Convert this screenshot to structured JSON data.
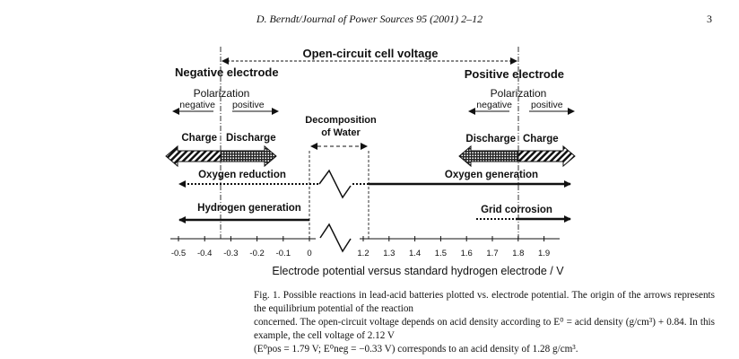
{
  "header": {
    "running_title": "D. Berndt/Journal of Power Sources 95 (2001) 2–12",
    "page_number": "3"
  },
  "figure": {
    "ocv_label": "Open-circuit cell voltage",
    "negative_electrode": {
      "title": "Negative electrode",
      "polarization": "Polarization",
      "neg": "negative",
      "pos": "positive",
      "left_label": "Charge",
      "right_label": "Discharge"
    },
    "positive_electrode": {
      "title": "Positive electrode",
      "polarization": "Polarization",
      "neg": "negative",
      "pos": "positive",
      "left_label": "Discharge",
      "right_label": "Charge"
    },
    "water": {
      "line1": "Decomposition",
      "line2": "of Water"
    },
    "reactions": {
      "oxygen_reduction": "Oxygen reduction",
      "oxygen_generation": "Oxygen generation",
      "hydrogen_generation": "Hydrogen generation",
      "grid_corrosion": "Grid corrosion"
    },
    "axis": {
      "ticks_left": [
        "-0.5",
        "-0.4",
        "-0.3",
        "-0.2",
        "-0.1",
        "0"
      ],
      "ticks_right": [
        "1.2",
        "1.3",
        "1.4",
        "1.5",
        "1.6",
        "1.7",
        "1.8",
        "1.9"
      ],
      "label": "Electrode potential versus standard hydrogen electrode / V",
      "e_neg": -0.33,
      "e_pos": 1.79,
      "water_limit": 1.23
    }
  },
  "caption": {
    "line1": "Fig. 1. Possible reactions in lead-acid batteries plotted vs. electrode potential. The origin of the arrows represents the equilibrium potential of the reaction",
    "line2": "concerned. The open-circuit voltage depends on acid density according to E⁰ = acid density (g/cm³) + 0.84. In this example, the cell voltage of 2.12 V",
    "line3": "(E⁰pos = 1.79 V; E⁰neg = −0.33 V) corresponds to an acid density of 1.28 g/cm³."
  }
}
